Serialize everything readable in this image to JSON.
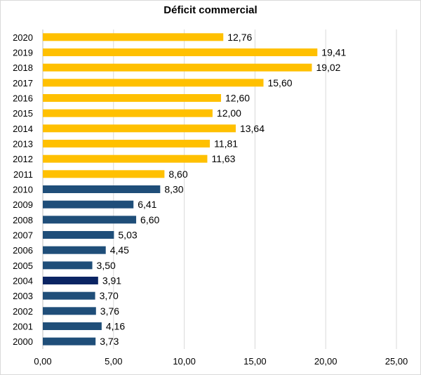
{
  "chart_data": {
    "type": "bar",
    "orientation": "horizontal",
    "title": "Déficit commercial",
    "xlabel": "",
    "ylabel": "",
    "xlim": [
      0,
      25
    ],
    "x_ticks": [
      "0,00",
      "5,00",
      "10,00",
      "15,00",
      "20,00",
      "25,00"
    ],
    "grid": "vertical",
    "legend": "none",
    "categories": [
      "2020",
      "2019",
      "2018",
      "2017",
      "2016",
      "2015",
      "2014",
      "2013",
      "2012",
      "2011",
      "2010",
      "2009",
      "2008",
      "2007",
      "2006",
      "2005",
      "2004",
      "2003",
      "2002",
      "2001",
      "2000"
    ],
    "values": [
      12.76,
      19.41,
      19.02,
      15.6,
      12.6,
      12.0,
      13.64,
      11.81,
      11.63,
      8.6,
      8.3,
      6.41,
      6.6,
      5.03,
      4.45,
      3.5,
      3.91,
      3.7,
      3.76,
      4.16,
      3.73
    ],
    "value_labels": [
      "12,76",
      "19,41",
      "19,02",
      "15,60",
      "12,60",
      "12,00",
      "13,64",
      "11,81",
      "11,63",
      "8,60",
      "8,30",
      "6,41",
      "6,60",
      "5,03",
      "4,45",
      "3,50",
      "3,91",
      "3,70",
      "3,76",
      "4,16",
      "3,73"
    ],
    "bar_colors": [
      "#ffc000",
      "#ffc000",
      "#ffc000",
      "#ffc000",
      "#ffc000",
      "#ffc000",
      "#ffc000",
      "#ffc000",
      "#ffc000",
      "#ffc000",
      "#1f4e79",
      "#1f4e79",
      "#1f4e79",
      "#1f4e79",
      "#1f4e79",
      "#1f4e79",
      "#0a2463",
      "#1f4e79",
      "#1f4e79",
      "#1f4e79",
      "#1f4e79"
    ]
  }
}
